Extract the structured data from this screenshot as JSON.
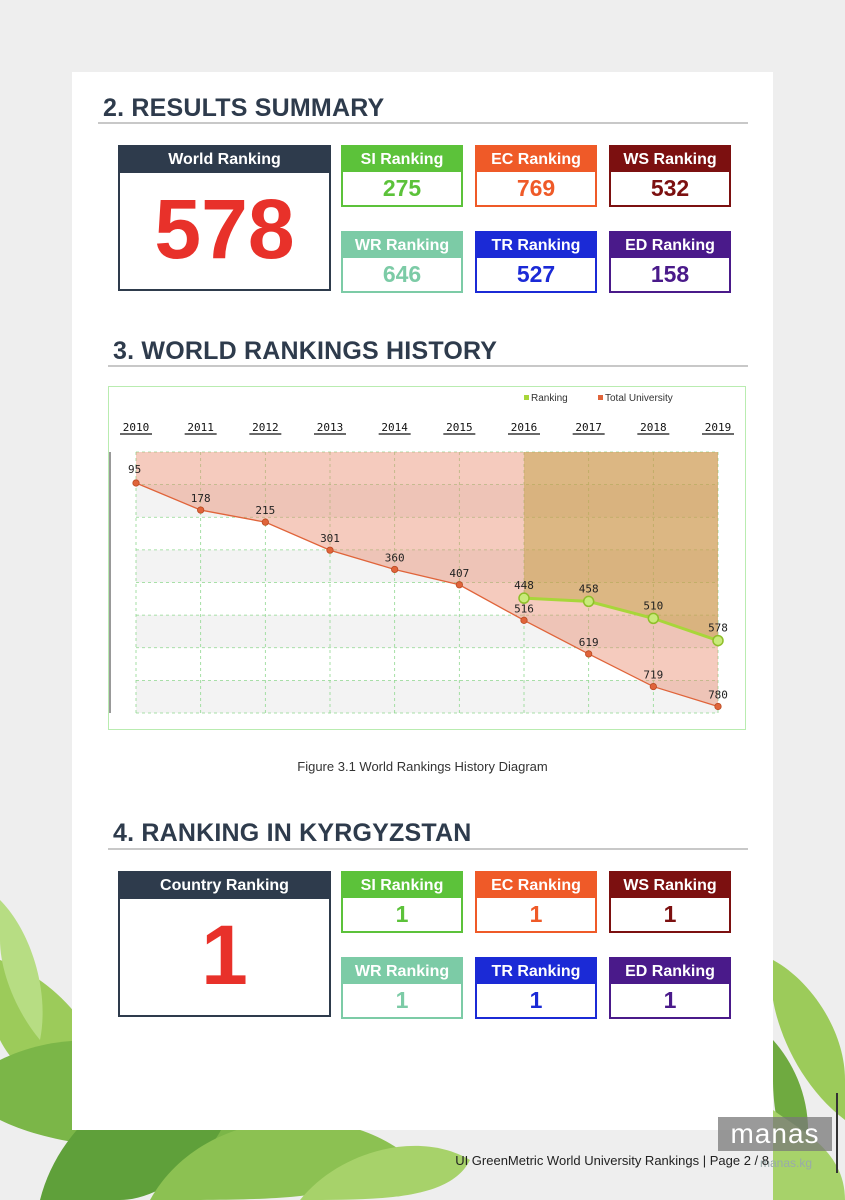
{
  "section2": {
    "title": "2. RESULTS SUMMARY",
    "world": {
      "label": "World Ranking",
      "value": "578"
    },
    "boxes": [
      {
        "label": "SI Ranking",
        "value": "275",
        "color": "#5cc23a"
      },
      {
        "label": "EC Ranking",
        "value": "769",
        "color": "#ef5a28"
      },
      {
        "label": "WS Ranking",
        "value": "532",
        "color": "#7c1010"
      },
      {
        "label": "WR Ranking",
        "value": "646",
        "color": "#7ccba6"
      },
      {
        "label": "TR Ranking",
        "value": "527",
        "color": "#1b2ad6"
      },
      {
        "label": "ED Ranking",
        "value": "158",
        "color": "#4a1a8a"
      }
    ]
  },
  "section3": {
    "title": "3. WORLD RANKINGS HISTORY",
    "caption": "Figure 3.1 World Rankings History Diagram"
  },
  "chart_data": {
    "type": "line",
    "x": [
      "2010",
      "2011",
      "2012",
      "2013",
      "2014",
      "2015",
      "2016",
      "2017",
      "2018",
      "2019"
    ],
    "series": [
      {
        "name": "Ranking",
        "color": "#a8d63a",
        "values": [
          null,
          null,
          null,
          null,
          null,
          null,
          448,
          458,
          510,
          578
        ]
      },
      {
        "name": "Total University",
        "color": "#e0643a",
        "values": [
          95,
          178,
          215,
          301,
          360,
          407,
          516,
          619,
          719,
          780
        ]
      }
    ],
    "legend": "top-right",
    "x_axis_position": "top",
    "y_inverted": true,
    "grid": true
  },
  "section4": {
    "title": "4. RANKING IN KYRGYZSTAN",
    "country": {
      "label": "Country Ranking",
      "value": "1"
    },
    "boxes": [
      {
        "label": "SI Ranking",
        "value": "1",
        "color": "#5cc23a"
      },
      {
        "label": "EC Ranking",
        "value": "1",
        "color": "#ef5a28"
      },
      {
        "label": "WS Ranking",
        "value": "1",
        "color": "#7c1010"
      },
      {
        "label": "WR Ranking",
        "value": "1",
        "color": "#7ccba6"
      },
      {
        "label": "TR Ranking",
        "value": "1",
        "color": "#1b2ad6"
      },
      {
        "label": "ED Ranking",
        "value": "1",
        "color": "#4a1a8a"
      }
    ]
  },
  "footer": {
    "text": "UI GreenMetric World University Rankings | Page 2 / 8"
  },
  "logo": {
    "text": "manas",
    "sub": "manas.kg"
  }
}
